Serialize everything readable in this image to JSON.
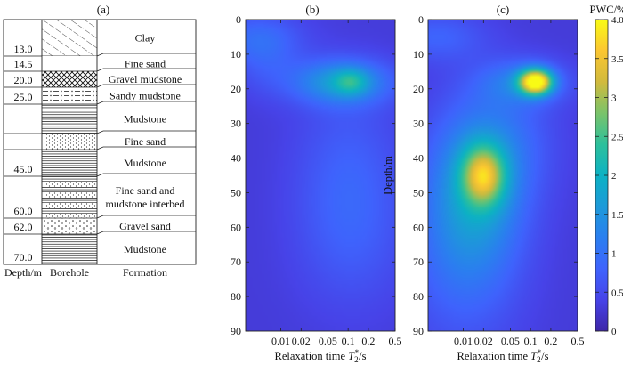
{
  "panel_a": {
    "label": "(a)",
    "layers": [
      {
        "bottom_depth": "13.0",
        "formation": [
          "Clay"
        ],
        "pattern": "diag"
      },
      {
        "bottom_depth": "14.5",
        "formation": [
          "Fine sand"
        ],
        "pattern": "blank"
      },
      {
        "bottom_depth": "20.0",
        "formation": [
          "Gravel mudstone"
        ],
        "pattern": "cross"
      },
      {
        "bottom_depth": "25.0",
        "formation": [
          "Sandy mudstone"
        ],
        "pattern": "dashdot"
      },
      {
        "bottom_depth": "",
        "formation": [
          "Mudstone"
        ],
        "pattern": "lines"
      },
      {
        "bottom_depth": "",
        "formation": [
          "Fine sand"
        ],
        "pattern": "dots"
      },
      {
        "bottom_depth": "45.0",
        "formation": [
          "Mudstone"
        ],
        "pattern": "lines"
      },
      {
        "bottom_depth": "60.0",
        "formation": [
          "Fine sand and",
          "mudstone interbed"
        ],
        "pattern": "interbed"
      },
      {
        "bottom_depth": "62.0",
        "formation": [
          "Gravel sand"
        ],
        "pattern": "gravel"
      },
      {
        "bottom_depth": "70.0",
        "formation": [
          "Mudstone"
        ],
        "pattern": "lines"
      }
    ],
    "footer": {
      "depth": "Depth/m",
      "borehole": "Borehole",
      "formation": "Formation"
    }
  },
  "chart_data": [
    {
      "type": "heatmap",
      "label": "(b)",
      "xlabel": "Relaxation time T2*/s",
      "ylabel": "",
      "x_scale": "log",
      "xlim": [
        0.003,
        0.5
      ],
      "ylim": [
        90,
        0
      ],
      "xticks": [
        "0.01",
        "0.02",
        "0.05",
        "0.1",
        "0.2",
        "0.5"
      ],
      "yticks": [
        "0",
        "10",
        "20",
        "30",
        "40",
        "50",
        "60",
        "70",
        "80",
        "90"
      ],
      "blobs": [
        {
          "t2": 0.004,
          "depth": 5,
          "pwc": 0.5,
          "s_logt": 0.5,
          "s_depth": 5
        },
        {
          "t2": 0.08,
          "depth": 18,
          "pwc": 1.3,
          "s_logt": 0.5,
          "s_depth": 4.5
        },
        {
          "t2": 0.11,
          "depth": 18,
          "pwc": 0.8,
          "s_logt": 0.17,
          "s_depth": 2.5
        },
        {
          "t2": 0.006,
          "depth": 12,
          "pwc": 0.35,
          "s_logt": 0.35,
          "s_depth": 7
        },
        {
          "t2": 0.1,
          "depth": 45,
          "pwc": 0.45,
          "s_logt": 0.55,
          "s_depth": 18
        },
        {
          "t2": 0.12,
          "depth": 65,
          "pwc": 0.25,
          "s_logt": 0.6,
          "s_depth": 15
        }
      ],
      "base_pwc": 0.3
    },
    {
      "type": "heatmap",
      "label": "(c)",
      "xlabel": "Relaxation time T2*/s",
      "ylabel": "Depth/m",
      "x_scale": "log",
      "xlim": [
        0.003,
        0.5
      ],
      "ylim": [
        90,
        0
      ],
      "xticks": [
        "0.01",
        "0.02",
        "0.05",
        "0.1",
        "0.2",
        "0.5"
      ],
      "yticks": [
        "0",
        "10",
        "20",
        "30",
        "40",
        "50",
        "60",
        "70",
        "80",
        "90"
      ],
      "blobs": [
        {
          "t2": 0.12,
          "depth": 18,
          "pwc": 3.6,
          "s_logt": 0.17,
          "s_depth": 2.5
        },
        {
          "t2": 0.08,
          "depth": 18,
          "pwc": 0.8,
          "s_logt": 0.45,
          "s_depth": 4.5
        },
        {
          "t2": 0.004,
          "depth": 5,
          "pwc": 0.5,
          "s_logt": 0.5,
          "s_depth": 5
        },
        {
          "t2": 0.02,
          "depth": 45,
          "pwc": 2.0,
          "s_logt": 0.22,
          "s_depth": 6
        },
        {
          "t2": 0.015,
          "depth": 48,
          "pwc": 1.2,
          "s_logt": 0.5,
          "s_depth": 16
        },
        {
          "t2": 0.01,
          "depth": 70,
          "pwc": 0.55,
          "s_logt": 0.6,
          "s_depth": 18
        },
        {
          "t2": 0.05,
          "depth": 35,
          "pwc": 0.4,
          "s_logt": 0.5,
          "s_depth": 12
        }
      ],
      "base_pwc": 0.3,
      "colorbar": {
        "title": "PWC/%",
        "range": [
          0,
          4
        ],
        "ticks": [
          "0",
          "0.5",
          "1",
          "1.5",
          "2",
          "2.5",
          "3",
          "3.5",
          "4.0"
        ]
      }
    }
  ]
}
